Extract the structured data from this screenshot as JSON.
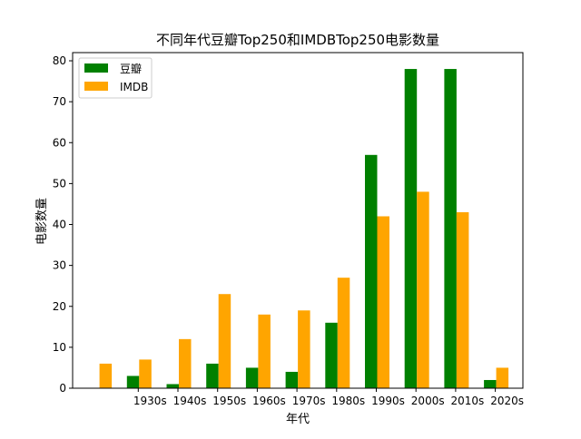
{
  "chart_data": {
    "type": "bar",
    "title": "不同年代豆瓣Top250和IMDBTop250电影数量",
    "xlabel": "年代",
    "ylabel": "电影数量",
    "categories": [
      "",
      "1930s",
      "1940s",
      "1950s",
      "1960s",
      "1970s",
      "1980s",
      "1990s",
      "2000s",
      "2010s",
      "2020s"
    ],
    "series": [
      {
        "name": "豆瓣",
        "color": "#008000",
        "values": [
          0,
          3,
          1,
          6,
          5,
          4,
          16,
          57,
          78,
          78,
          2
        ]
      },
      {
        "name": "IMDB",
        "color": "#FFA500",
        "values": [
          6,
          7,
          12,
          23,
          18,
          19,
          27,
          42,
          48,
          43,
          5
        ]
      }
    ],
    "ylim": [
      0,
      82
    ],
    "yticks": [
      0,
      10,
      20,
      30,
      40,
      50,
      60,
      70,
      80
    ],
    "grid": false,
    "legend_position": "top-left"
  }
}
